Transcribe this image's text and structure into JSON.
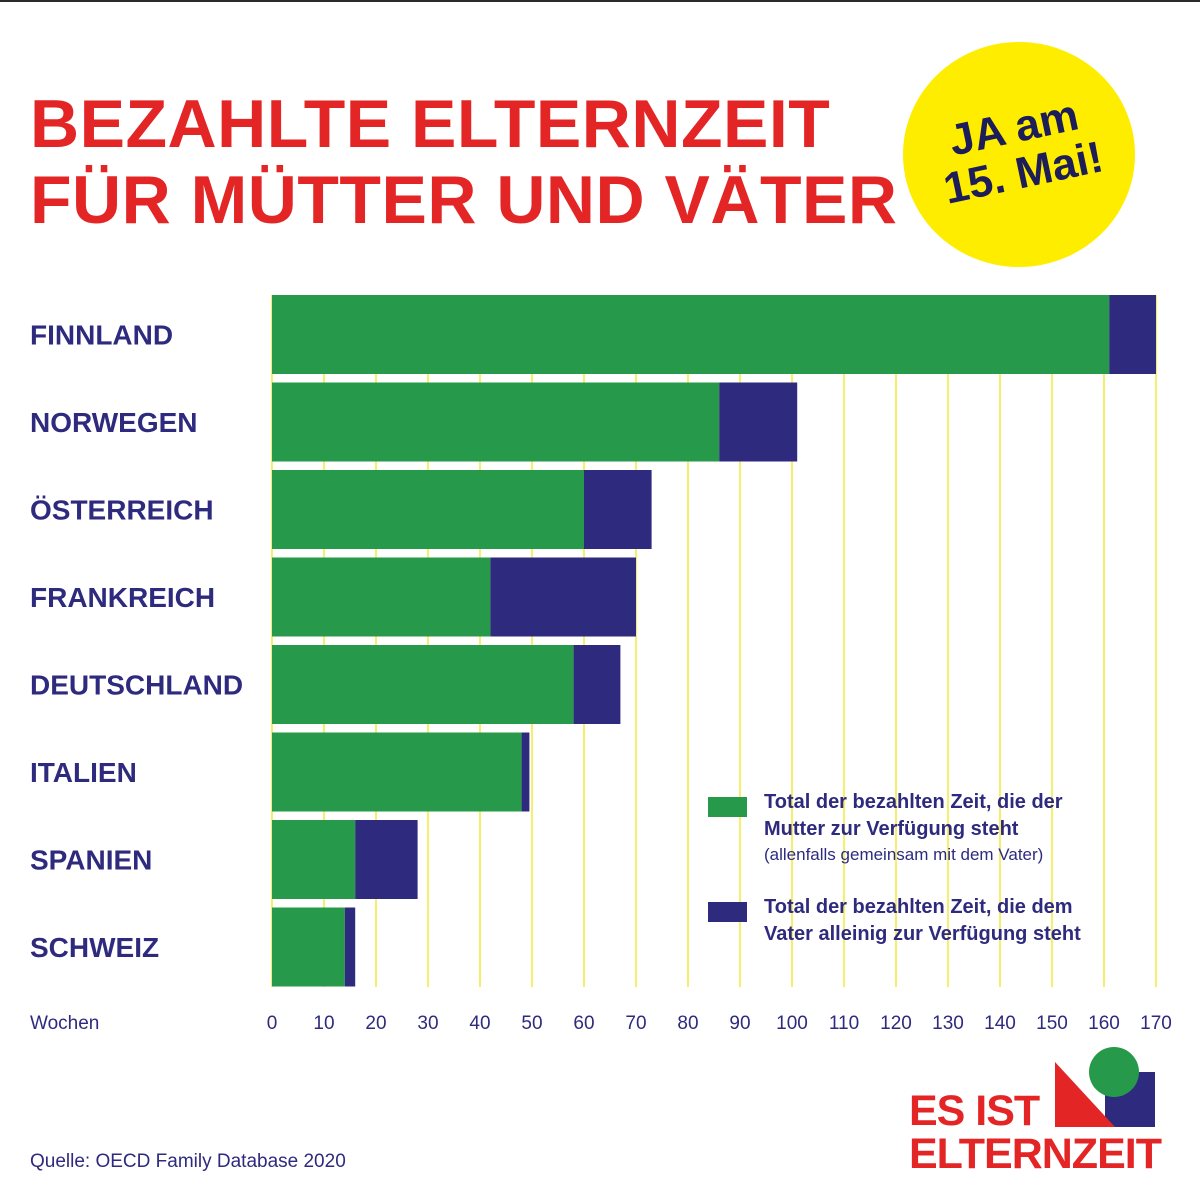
{
  "title": {
    "line1": "BEZAHLTE ELTERNZEIT",
    "line2": "FÜR MÜTTER UND VÄTER"
  },
  "badge": {
    "line1": "JA am",
    "line2": "15. Mai!"
  },
  "chart_data": {
    "type": "bar",
    "orientation": "horizontal",
    "stacked": true,
    "categories": [
      "FINNLAND",
      "NORWEGEN",
      "ÖSTERREICH",
      "FRANKREICH",
      "DEUTSCHLAND",
      "ITALIEN",
      "SPANIEN",
      "SCHWEIZ"
    ],
    "series": [
      {
        "name": "Total der bezahlten Zeit, die der Mutter zur Verfügung steht",
        "note": "(allenfalls gemeinsam mit dem Vater)",
        "color": "#27994a",
        "values": [
          161,
          86,
          60,
          42,
          58,
          48,
          16,
          14
        ]
      },
      {
        "name": "Total der bezahlten Zeit, die dem Vater alleinig zur Verfügung steht",
        "color": "#2e2a7e",
        "values": [
          9,
          15,
          13,
          28,
          9,
          1.5,
          12,
          2
        ]
      }
    ],
    "xlabel": "Wochen",
    "xlim": [
      0,
      170
    ],
    "xticks": [
      0,
      10,
      20,
      30,
      40,
      50,
      60,
      70,
      80,
      90,
      100,
      110,
      120,
      130,
      140,
      150,
      160,
      170
    ],
    "grid": true,
    "grid_color": "#f2ea3a",
    "legend_position": "bottom-right"
  },
  "legend": {
    "mother_main": "Total der bezahlten Zeit, die der\nMutter zur Verfügung steht",
    "mother_sub": "(allenfalls gemeinsam mit dem Vater)",
    "father_main": "Total der bezahlten Zeit, die dem\nVater alleinig zur Verfügung steht"
  },
  "source": "Quelle: OECD Family Database 2020",
  "logo": {
    "line1": "ES IST",
    "line2": "ELTERNZEIT"
  },
  "colors": {
    "title_red": "#e32526",
    "navy": "#2e2a7e",
    "green": "#27994a",
    "yellow": "#ffed00",
    "grid_yellow": "#f2ea3a"
  }
}
